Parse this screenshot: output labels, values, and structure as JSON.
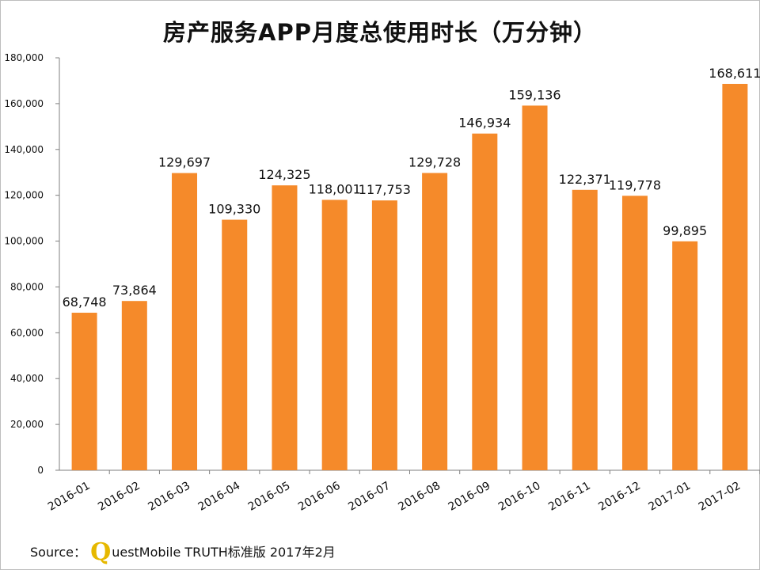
{
  "chart_data": {
    "type": "bar",
    "title": "房产服务APP月度总使用时长（万分钟）",
    "xlabel": "",
    "ylabel": "",
    "categories": [
      "2016-01",
      "2016-02",
      "2016-03",
      "2016-04",
      "2016-05",
      "2016-06",
      "2016-07",
      "2016-08",
      "2016-09",
      "2016-10",
      "2016-11",
      "2016-12",
      "2017-01",
      "2017-02"
    ],
    "values": [
      68748,
      73864,
      129697,
      109330,
      124325,
      118001,
      117753,
      129728,
      146934,
      159136,
      122371,
      119778,
      99895,
      168611
    ],
    "value_labels": [
      "68,748",
      "73,864",
      "129,697",
      "109,330",
      "124,325",
      "118,001",
      "117,753",
      "129,728",
      "146,934",
      "159,136",
      "122,371",
      "119,778",
      "99,895",
      "168,611"
    ],
    "ylim": [
      0,
      180000
    ],
    "yticks": [
      0,
      20000,
      40000,
      60000,
      80000,
      100000,
      120000,
      140000,
      160000,
      180000
    ],
    "ytick_labels": [
      "0",
      "20,000",
      "40,000",
      "60,000",
      "80,000",
      "100,000",
      "120,000",
      "140,000",
      "160,000",
      "180,000"
    ],
    "grid": false,
    "bar_color": "#f58a2a"
  },
  "source": {
    "prefix": "Source：",
    "logo_letter": "Q",
    "text": "uestMobile TRUTH标准版 2017年2月"
  }
}
